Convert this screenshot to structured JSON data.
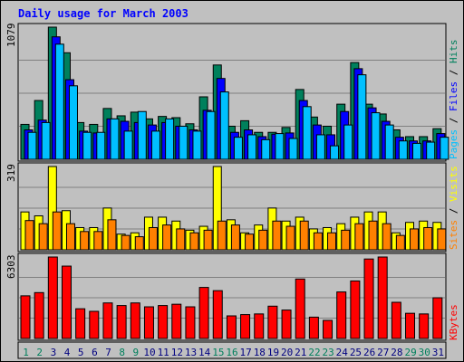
{
  "chart_data": [
    {
      "type": "bar",
      "title": "Daily usage for March 2003",
      "categories": [
        "1",
        "2",
        "3",
        "4",
        "5",
        "6",
        "7",
        "8",
        "9",
        "10",
        "11",
        "12",
        "13",
        "14",
        "15",
        "16",
        "17",
        "18",
        "19",
        "20",
        "21",
        "22",
        "23",
        "24",
        "25",
        "26",
        "27",
        "28",
        "29",
        "30",
        "31"
      ],
      "weekend_days": [
        "1",
        "2",
        "8",
        "9",
        "15",
        "16",
        "22",
        "23",
        "29",
        "30"
      ],
      "ymax_label": "1079",
      "ylim": [
        0,
        1079
      ],
      "grid": true,
      "legend": "right-vertical",
      "series": [
        {
          "name": "Hits",
          "color": "#00805c",
          "values": [
            285,
            480,
            1079,
            870,
            300,
            285,
            415,
            355,
            385,
            330,
            350,
            340,
            290,
            510,
            770,
            270,
            315,
            220,
            220,
            260,
            570,
            345,
            270,
            450,
            790,
            450,
            370,
            240,
            185,
            185,
            250
          ]
        },
        {
          "name": "Files",
          "color": "#0000ff",
          "values": [
            240,
            320,
            1000,
            650,
            230,
            215,
            330,
            310,
            300,
            280,
            300,
            270,
            240,
            400,
            660,
            220,
            240,
            185,
            205,
            215,
            480,
            280,
            200,
            390,
            740,
            420,
            310,
            180,
            150,
            150,
            210
          ]
        },
        {
          "name": "Pages",
          "color": "#00c0ff",
          "values": [
            220,
            300,
            940,
            600,
            220,
            220,
            330,
            230,
            390,
            230,
            330,
            270,
            230,
            390,
            550,
            180,
            200,
            160,
            210,
            170,
            430,
            200,
            110,
            280,
            690,
            380,
            280,
            150,
            130,
            140,
            180
          ]
        }
      ]
    },
    {
      "type": "bar",
      "ymax_label": "319",
      "ylim": [
        0,
        319
      ],
      "grid": true,
      "legend": "right-vertical",
      "series": [
        {
          "name": "Visits",
          "color": "#ffff00",
          "values": [
            145,
            130,
            319,
            150,
            85,
            85,
            160,
            60,
            65,
            125,
            125,
            110,
            75,
            90,
            319,
            115,
            65,
            95,
            160,
            110,
            125,
            80,
            85,
            100,
            125,
            145,
            145,
            65,
            105,
            110,
            105
          ]
        },
        {
          "name": "Sites",
          "color": "#ff8000",
          "values": [
            112,
            100,
            145,
            100,
            70,
            70,
            115,
            55,
            50,
            85,
            95,
            80,
            65,
            75,
            110,
            95,
            60,
            75,
            110,
            90,
            110,
            65,
            65,
            75,
            100,
            110,
            100,
            55,
            80,
            85,
            80
          ]
        }
      ]
    },
    {
      "type": "bar",
      "ymax_label": "6303",
      "ylim": [
        0,
        6303
      ],
      "grid": true,
      "legend": "right-vertical",
      "series": [
        {
          "name": "KBytes",
          "color": "#ff0000",
          "values": [
            3300,
            3550,
            6303,
            5600,
            2300,
            2100,
            2750,
            2550,
            2750,
            2450,
            2550,
            2650,
            2450,
            3950,
            3700,
            1750,
            1850,
            1900,
            2500,
            2200,
            4600,
            1650,
            1400,
            3600,
            4450,
            6150,
            6303,
            2800,
            1950,
            1900,
            3150
          ]
        }
      ]
    }
  ]
}
